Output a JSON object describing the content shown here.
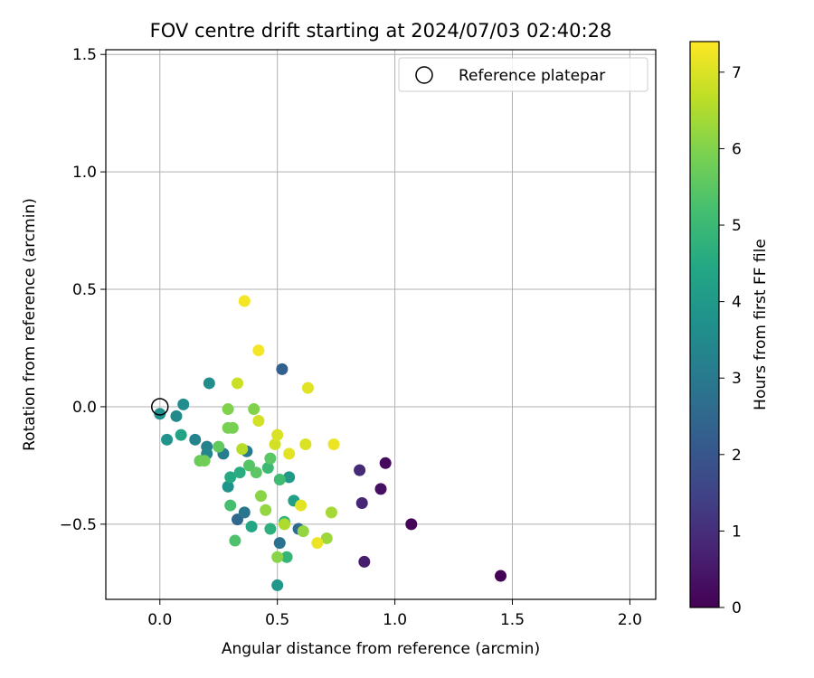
{
  "chart_data": {
    "type": "scatter",
    "title": "FOV centre drift starting at 2024/07/03 02:40:28",
    "xlabel": "Angular distance from reference (arcmin)",
    "ylabel": "Rotation from reference (arcmin)",
    "xlim": [
      -0.23,
      2.11
    ],
    "ylim": [
      -0.82,
      1.52
    ],
    "xticks": [
      "0.0",
      "0.5",
      "1.0",
      "1.5",
      "2.0"
    ],
    "xtick_values": [
      0.0,
      0.5,
      1.0,
      1.5,
      2.0
    ],
    "yticks": [
      "−0.5",
      "0.0",
      "0.5",
      "1.0",
      "1.5"
    ],
    "ytick_values": [
      -0.5,
      0.0,
      0.5,
      1.0,
      1.5
    ],
    "grid": true,
    "legend": {
      "placement": "top-right",
      "entries": [
        "Reference platepar"
      ]
    },
    "reference_point": {
      "x": 0.0,
      "y": 0.0
    },
    "colorbar": {
      "label": "Hours from first FF file",
      "colormap": "viridis",
      "range": [
        0,
        7.4
      ],
      "ticks": [
        "0",
        "1",
        "2",
        "3",
        "4",
        "5",
        "6",
        "7"
      ],
      "tick_values": [
        0,
        1,
        2,
        3,
        4,
        5,
        6,
        7
      ]
    },
    "points": [
      {
        "x": 1.45,
        "y": -0.72,
        "c": 0.05
      },
      {
        "x": 1.07,
        "y": -0.5,
        "c": 0.1
      },
      {
        "x": 0.96,
        "y": -0.24,
        "c": 0.2
      },
      {
        "x": 0.94,
        "y": -0.35,
        "c": 0.3
      },
      {
        "x": 0.87,
        "y": -0.66,
        "c": 0.6
      },
      {
        "x": 0.86,
        "y": -0.41,
        "c": 0.8
      },
      {
        "x": 0.85,
        "y": -0.27,
        "c": 0.9
      },
      {
        "x": 0.52,
        "y": 0.16,
        "c": 2.3
      },
      {
        "x": 0.33,
        "y": -0.48,
        "c": 2.5
      },
      {
        "x": 0.59,
        "y": -0.52,
        "c": 2.6
      },
      {
        "x": 0.51,
        "y": -0.58,
        "c": 2.8
      },
      {
        "x": 0.36,
        "y": -0.45,
        "c": 2.9
      },
      {
        "x": 0.37,
        "y": -0.19,
        "c": 3.0
      },
      {
        "x": 0.27,
        "y": -0.2,
        "c": 3.1
      },
      {
        "x": 0.2,
        "y": -0.17,
        "c": 3.2
      },
      {
        "x": 0.15,
        "y": -0.14,
        "c": 3.3
      },
      {
        "x": 0.2,
        "y": -0.2,
        "c": 3.4
      },
      {
        "x": 0.07,
        "y": -0.04,
        "c": 3.5
      },
      {
        "x": 0.1,
        "y": 0.01,
        "c": 3.6
      },
      {
        "x": 0.21,
        "y": 0.1,
        "c": 3.6
      },
      {
        "x": 0.0,
        "y": -0.03,
        "c": 3.7
      },
      {
        "x": 0.03,
        "y": -0.14,
        "c": 3.8
      },
      {
        "x": 0.29,
        "y": -0.34,
        "c": 3.8
      },
      {
        "x": 0.5,
        "y": -0.76,
        "c": 3.9
      },
      {
        "x": 0.55,
        "y": -0.3,
        "c": 4.0
      },
      {
        "x": 0.57,
        "y": -0.4,
        "c": 4.2
      },
      {
        "x": 0.09,
        "y": -0.12,
        "c": 4.3
      },
      {
        "x": 0.39,
        "y": -0.51,
        "c": 4.4
      },
      {
        "x": 0.3,
        "y": -0.3,
        "c": 4.5
      },
      {
        "x": 0.34,
        "y": -0.28,
        "c": 4.6
      },
      {
        "x": 0.47,
        "y": -0.52,
        "c": 4.7
      },
      {
        "x": 0.53,
        "y": -0.49,
        "c": 4.8
      },
      {
        "x": 0.54,
        "y": -0.64,
        "c": 4.9
      },
      {
        "x": 0.46,
        "y": -0.26,
        "c": 5.0
      },
      {
        "x": 0.51,
        "y": -0.31,
        "c": 5.1
      },
      {
        "x": 0.3,
        "y": -0.42,
        "c": 5.2
      },
      {
        "x": 0.32,
        "y": -0.57,
        "c": 5.3
      },
      {
        "x": 0.38,
        "y": -0.25,
        "c": 5.4
      },
      {
        "x": 0.41,
        "y": -0.28,
        "c": 5.5
      },
      {
        "x": 0.47,
        "y": -0.22,
        "c": 5.5
      },
      {
        "x": 0.25,
        "y": -0.17,
        "c": 5.6
      },
      {
        "x": 0.17,
        "y": -0.23,
        "c": 5.7
      },
      {
        "x": 0.19,
        "y": -0.23,
        "c": 5.8
      },
      {
        "x": 0.29,
        "y": -0.09,
        "c": 5.9
      },
      {
        "x": 0.31,
        "y": -0.09,
        "c": 5.9
      },
      {
        "x": 0.29,
        "y": -0.01,
        "c": 6.0
      },
      {
        "x": 0.4,
        "y": -0.01,
        "c": 6.0
      },
      {
        "x": 0.43,
        "y": -0.38,
        "c": 6.1
      },
      {
        "x": 0.45,
        "y": -0.44,
        "c": 6.2
      },
      {
        "x": 0.5,
        "y": -0.64,
        "c": 6.1
      },
      {
        "x": 0.61,
        "y": -0.53,
        "c": 6.2
      },
      {
        "x": 0.71,
        "y": -0.56,
        "c": 6.3
      },
      {
        "x": 0.73,
        "y": -0.45,
        "c": 6.4
      },
      {
        "x": 0.53,
        "y": -0.5,
        "c": 6.5
      },
      {
        "x": 0.35,
        "y": -0.18,
        "c": 6.6
      },
      {
        "x": 0.33,
        "y": 0.1,
        "c": 6.8
      },
      {
        "x": 0.42,
        "y": -0.06,
        "c": 6.9
      },
      {
        "x": 0.49,
        "y": -0.16,
        "c": 6.9
      },
      {
        "x": 0.5,
        "y": -0.12,
        "c": 7.0
      },
      {
        "x": 0.62,
        "y": -0.16,
        "c": 7.0
      },
      {
        "x": 0.63,
        "y": 0.08,
        "c": 7.1
      },
      {
        "x": 0.55,
        "y": -0.2,
        "c": 7.1
      },
      {
        "x": 0.6,
        "y": -0.42,
        "c": 7.1
      },
      {
        "x": 0.67,
        "y": -0.58,
        "c": 7.2
      },
      {
        "x": 0.74,
        "y": -0.16,
        "c": 7.2
      },
      {
        "x": 0.36,
        "y": 0.45,
        "c": 7.3
      },
      {
        "x": 0.42,
        "y": 0.24,
        "c": 7.3
      }
    ]
  }
}
